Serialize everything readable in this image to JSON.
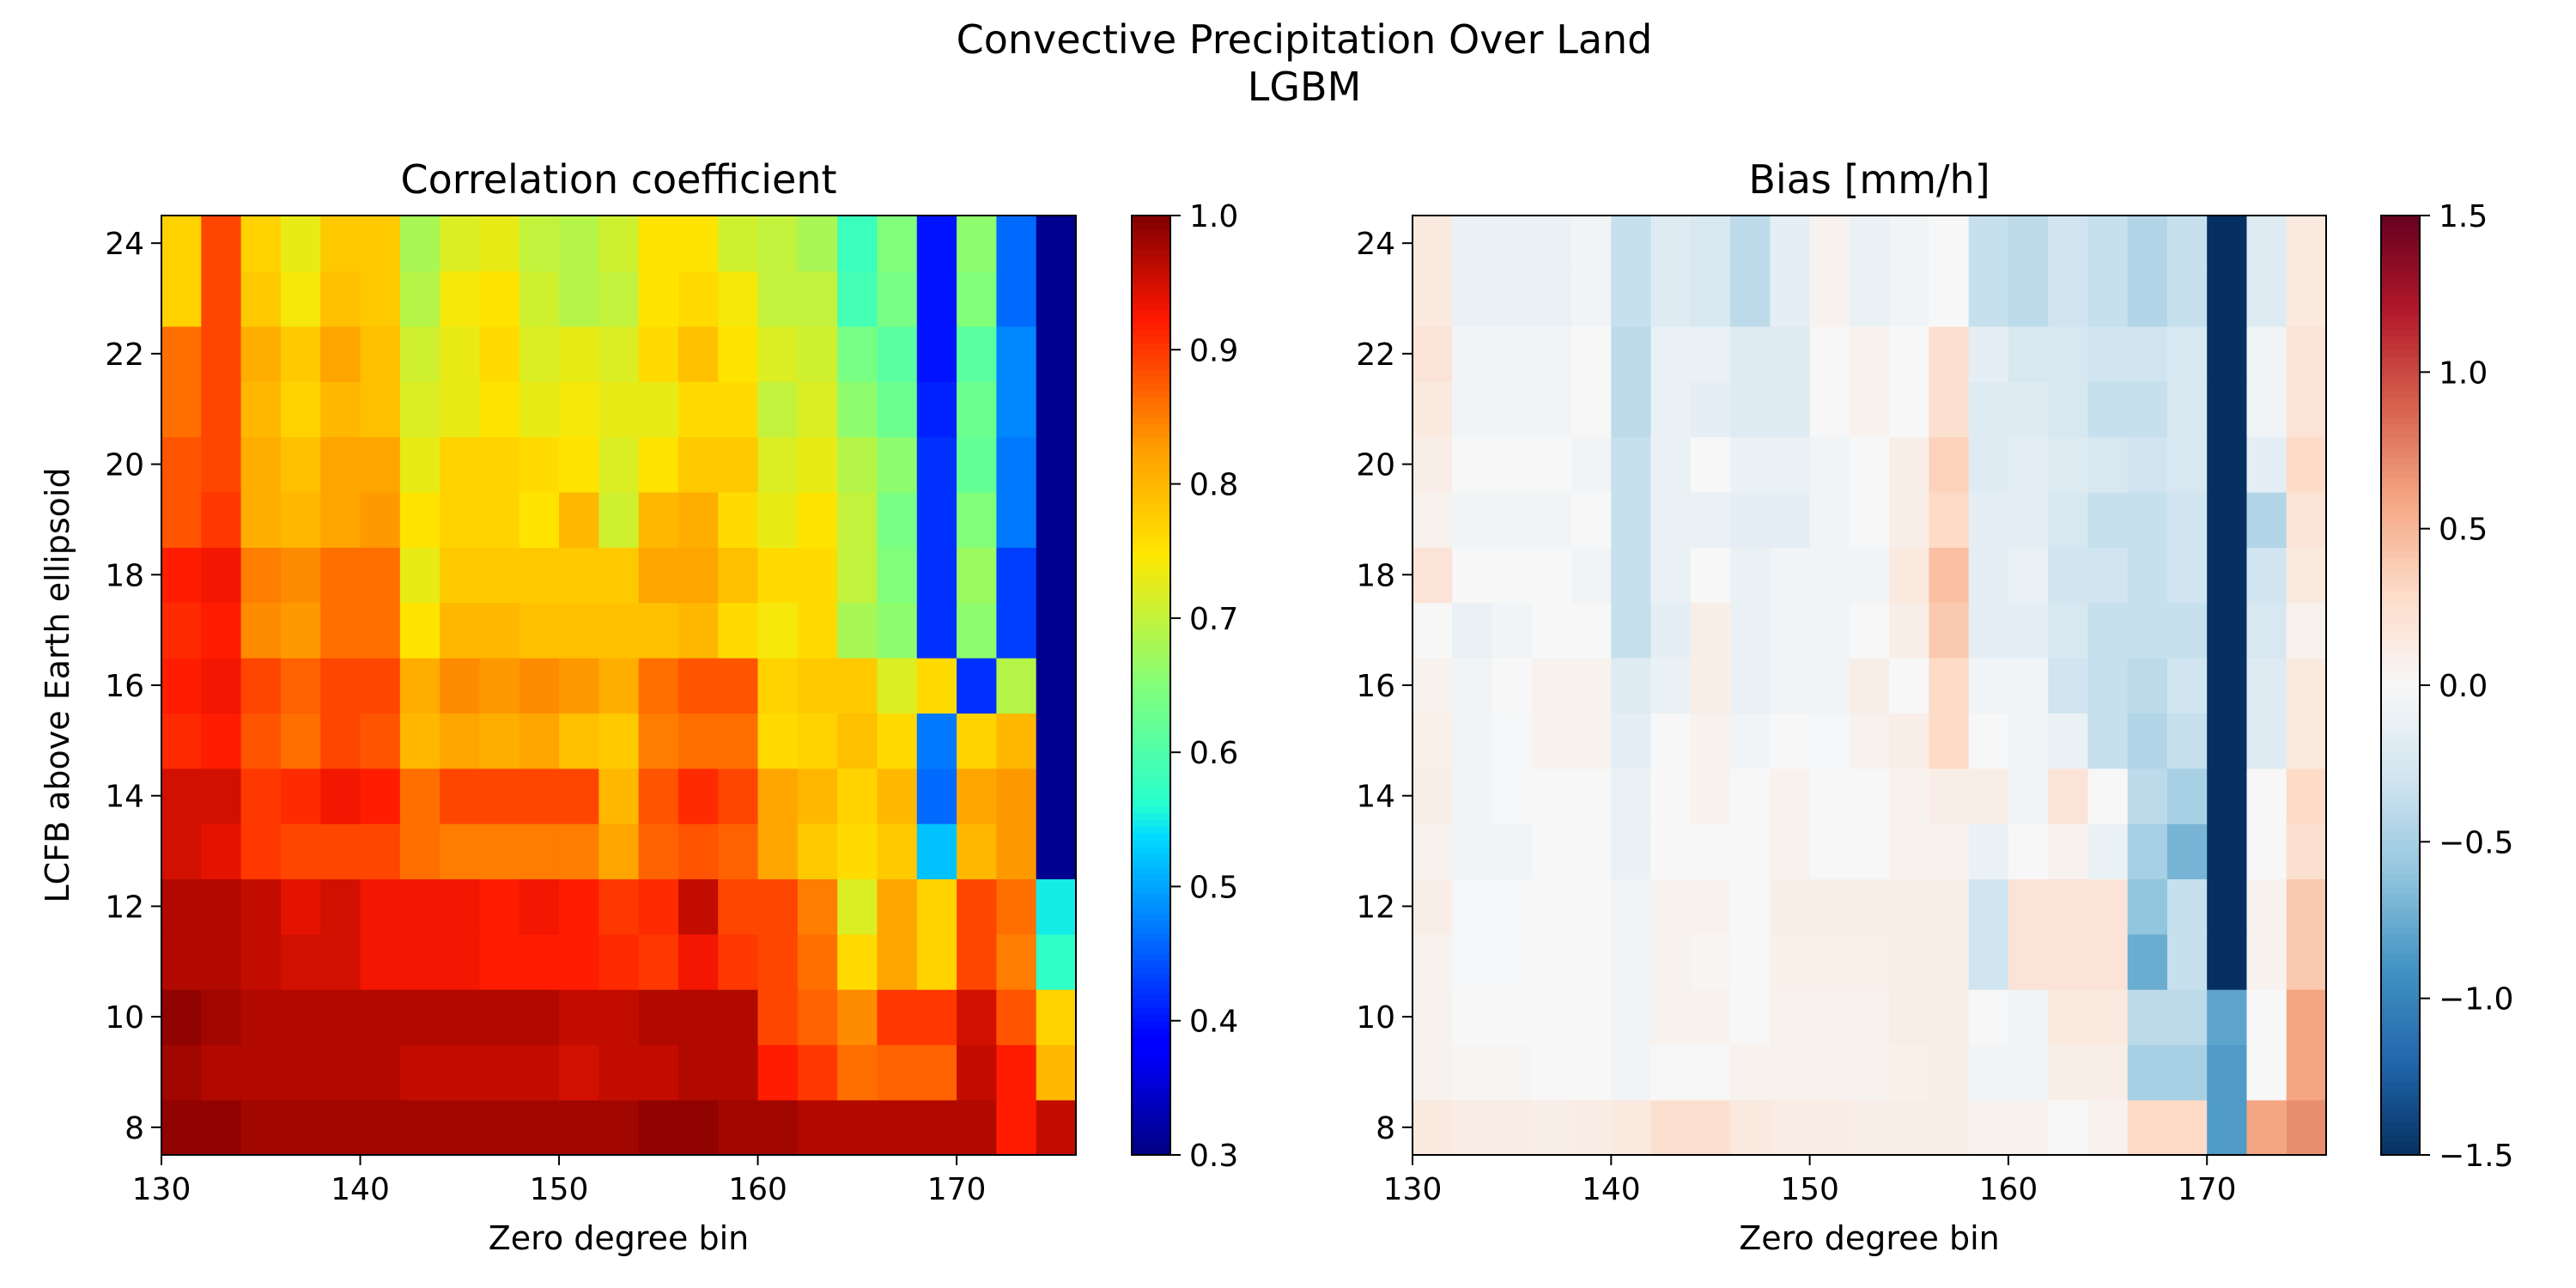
{
  "figure": {
    "title": "Convective Precipitation Over Land",
    "subtitle": "LGBM"
  },
  "chart_data": [
    {
      "type": "heatmap",
      "title": "Correlation coefficient",
      "xlabel": "Zero degree bin",
      "ylabel": "LCFB above Earth ellipsoid",
      "xlim": [
        130,
        176
      ],
      "ylim": [
        7.5,
        24.5
      ],
      "x_ticks": [
        130,
        140,
        150,
        160,
        170
      ],
      "y_ticks": [
        8,
        10,
        12,
        14,
        16,
        18,
        20,
        22,
        24
      ],
      "x_bin_starts": [
        130,
        132,
        134,
        136,
        138,
        140,
        142,
        144,
        146,
        148,
        150,
        152,
        154,
        156,
        158,
        160,
        162,
        164,
        166,
        168,
        170,
        172,
        174
      ],
      "y_bin_edges": [
        7.5,
        8.5,
        9.5,
        10.5,
        11.5,
        12.5,
        13.5,
        14.5,
        15.5,
        16.5,
        17.5,
        18.5,
        19.5,
        20.5,
        21.5,
        22.5,
        23.5,
        24.5
      ],
      "colormap": "jet",
      "colorbar": {
        "min": 0.3,
        "max": 1.0,
        "ticks": [
          "0.3",
          "0.4",
          "0.5",
          "0.6",
          "0.7",
          "0.8",
          "0.9",
          "1.0"
        ]
      },
      "values": [
        [
          0.99,
          0.99,
          0.98,
          0.98,
          0.98,
          0.98,
          0.98,
          0.98,
          0.98,
          0.98,
          0.98,
          0.98,
          0.99,
          0.99,
          0.98,
          0.98,
          0.97,
          0.97,
          0.97,
          0.97,
          0.97,
          0.92,
          0.96
        ],
        [
          0.98,
          0.97,
          0.97,
          0.97,
          0.97,
          0.97,
          0.96,
          0.96,
          0.96,
          0.96,
          0.95,
          0.96,
          0.96,
          0.97,
          0.97,
          0.92,
          0.9,
          0.86,
          0.87,
          0.87,
          0.96,
          0.92,
          0.8
        ],
        [
          0.99,
          0.98,
          0.97,
          0.97,
          0.97,
          0.97,
          0.97,
          0.97,
          0.97,
          0.97,
          0.96,
          0.96,
          0.97,
          0.97,
          0.97,
          0.89,
          0.87,
          0.84,
          0.9,
          0.9,
          0.95,
          0.88,
          0.77
        ],
        [
          0.97,
          0.97,
          0.96,
          0.95,
          0.95,
          0.93,
          0.93,
          0.93,
          0.92,
          0.92,
          0.92,
          0.91,
          0.9,
          0.93,
          0.9,
          0.89,
          0.86,
          0.76,
          0.82,
          0.77,
          0.89,
          0.85,
          0.57
        ],
        [
          0.97,
          0.97,
          0.96,
          0.94,
          0.95,
          0.93,
          0.93,
          0.93,
          0.92,
          0.93,
          0.92,
          0.9,
          0.91,
          0.96,
          0.89,
          0.89,
          0.85,
          0.72,
          0.82,
          0.77,
          0.89,
          0.86,
          0.55
        ],
        [
          0.95,
          0.94,
          0.9,
          0.89,
          0.89,
          0.89,
          0.86,
          0.85,
          0.85,
          0.85,
          0.85,
          0.82,
          0.87,
          0.88,
          0.87,
          0.82,
          0.78,
          0.76,
          0.78,
          0.52,
          0.8,
          0.83,
          0.31
        ],
        [
          0.95,
          0.95,
          0.9,
          0.91,
          0.93,
          0.92,
          0.86,
          0.89,
          0.89,
          0.89,
          0.89,
          0.8,
          0.88,
          0.91,
          0.89,
          0.82,
          0.8,
          0.77,
          0.8,
          0.46,
          0.82,
          0.83,
          0.31
        ],
        [
          0.91,
          0.92,
          0.88,
          0.86,
          0.89,
          0.88,
          0.8,
          0.82,
          0.81,
          0.82,
          0.79,
          0.78,
          0.85,
          0.86,
          0.86,
          0.76,
          0.77,
          0.79,
          0.76,
          0.47,
          0.77,
          0.8,
          0.31
        ],
        [
          0.92,
          0.93,
          0.89,
          0.87,
          0.89,
          0.89,
          0.81,
          0.84,
          0.83,
          0.84,
          0.83,
          0.81,
          0.86,
          0.88,
          0.88,
          0.77,
          0.78,
          0.78,
          0.72,
          0.76,
          0.42,
          0.69,
          0.31
        ],
        [
          0.91,
          0.92,
          0.84,
          0.83,
          0.86,
          0.86,
          0.75,
          0.8,
          0.8,
          0.79,
          0.79,
          0.79,
          0.79,
          0.8,
          0.76,
          0.74,
          0.76,
          0.68,
          0.66,
          0.42,
          0.66,
          0.43,
          0.31
        ],
        [
          0.92,
          0.93,
          0.85,
          0.84,
          0.86,
          0.86,
          0.73,
          0.78,
          0.78,
          0.78,
          0.78,
          0.78,
          0.82,
          0.82,
          0.79,
          0.76,
          0.76,
          0.7,
          0.65,
          0.42,
          0.67,
          0.43,
          0.31
        ],
        [
          0.88,
          0.9,
          0.81,
          0.8,
          0.82,
          0.83,
          0.75,
          0.77,
          0.77,
          0.75,
          0.8,
          0.71,
          0.8,
          0.81,
          0.76,
          0.73,
          0.75,
          0.7,
          0.64,
          0.42,
          0.65,
          0.47,
          0.31
        ],
        [
          0.88,
          0.89,
          0.81,
          0.79,
          0.82,
          0.82,
          0.73,
          0.77,
          0.77,
          0.76,
          0.75,
          0.72,
          0.75,
          0.78,
          0.78,
          0.72,
          0.73,
          0.69,
          0.66,
          0.42,
          0.62,
          0.47,
          0.31
        ],
        [
          0.86,
          0.89,
          0.8,
          0.77,
          0.8,
          0.79,
          0.72,
          0.73,
          0.75,
          0.73,
          0.74,
          0.73,
          0.73,
          0.76,
          0.76,
          0.7,
          0.72,
          0.66,
          0.63,
          0.41,
          0.63,
          0.48,
          0.31
        ],
        [
          0.86,
          0.89,
          0.81,
          0.78,
          0.82,
          0.79,
          0.71,
          0.73,
          0.76,
          0.72,
          0.73,
          0.72,
          0.76,
          0.79,
          0.75,
          0.72,
          0.71,
          0.64,
          0.61,
          0.4,
          0.61,
          0.48,
          0.31
        ],
        [
          0.77,
          0.89,
          0.78,
          0.74,
          0.79,
          0.78,
          0.69,
          0.74,
          0.75,
          0.71,
          0.69,
          0.7,
          0.75,
          0.76,
          0.74,
          0.7,
          0.7,
          0.59,
          0.64,
          0.4,
          0.65,
          0.46,
          0.31
        ],
        [
          0.77,
          0.89,
          0.77,
          0.73,
          0.78,
          0.78,
          0.68,
          0.72,
          0.73,
          0.7,
          0.69,
          0.71,
          0.75,
          0.75,
          0.71,
          0.7,
          0.68,
          0.58,
          0.65,
          0.4,
          0.66,
          0.46,
          0.31
        ]
      ]
    },
    {
      "type": "heatmap",
      "title": "Bias [mm/h]",
      "xlabel": "Zero degree bin",
      "ylabel": "",
      "xlim": [
        130,
        176
      ],
      "ylim": [
        7.5,
        24.5
      ],
      "x_ticks": [
        130,
        140,
        150,
        160,
        170
      ],
      "y_ticks": [
        8,
        10,
        12,
        14,
        16,
        18,
        20,
        22,
        24
      ],
      "x_bin_starts": [
        130,
        132,
        134,
        136,
        138,
        140,
        142,
        144,
        146,
        148,
        150,
        152,
        154,
        156,
        158,
        160,
        162,
        164,
        166,
        168,
        170,
        172,
        174
      ],
      "y_bin_edges": [
        7.5,
        8.5,
        9.5,
        10.5,
        11.5,
        12.5,
        13.5,
        14.5,
        15.5,
        16.5,
        17.5,
        18.5,
        19.5,
        20.5,
        21.5,
        22.5,
        23.5,
        24.5
      ],
      "colormap": "RdBu_r",
      "colorbar": {
        "min": -1.5,
        "max": 1.5,
        "ticks": [
          "−1.5",
          "−1.0",
          "−0.5",
          "0.0",
          "0.5",
          "1.0",
          "1.5"
        ]
      },
      "values": [
        [
          0.15,
          0.12,
          0.12,
          0.1,
          0.12,
          0.15,
          0.25,
          0.25,
          0.15,
          0.12,
          0.12,
          0.1,
          0.1,
          0.1,
          0.05,
          0.05,
          0.0,
          0.05,
          0.3,
          0.3,
          -0.85,
          0.6,
          0.7
        ],
        [
          0.05,
          0.02,
          0.02,
          0.0,
          0.0,
          -0.05,
          0.0,
          0.0,
          0.05,
          0.05,
          0.05,
          0.05,
          0.08,
          0.1,
          -0.05,
          -0.05,
          0.1,
          0.1,
          -0.5,
          -0.5,
          -0.85,
          0.0,
          0.6
        ],
        [
          0.05,
          0.0,
          0.0,
          0.0,
          0.0,
          -0.05,
          0.05,
          0.05,
          0.0,
          0.05,
          0.05,
          0.05,
          0.1,
          0.1,
          0.0,
          -0.05,
          0.15,
          0.15,
          -0.4,
          -0.4,
          -0.8,
          0.0,
          0.6
        ],
        [
          0.05,
          -0.02,
          -0.02,
          0.0,
          0.0,
          -0.05,
          0.05,
          0.02,
          0.0,
          0.08,
          0.08,
          0.08,
          0.1,
          0.1,
          -0.3,
          0.2,
          0.2,
          0.2,
          -0.75,
          -0.35,
          -1.5,
          0.05,
          0.4
        ],
        [
          0.1,
          -0.02,
          -0.02,
          0.0,
          0.0,
          -0.05,
          0.05,
          0.05,
          0.0,
          0.1,
          0.1,
          0.1,
          0.1,
          0.1,
          -0.3,
          0.2,
          0.2,
          0.2,
          -0.6,
          -0.35,
          -1.5,
          0.05,
          0.4
        ],
        [
          0.05,
          -0.05,
          -0.05,
          0.0,
          0.0,
          -0.1,
          0.0,
          0.0,
          0.0,
          0.05,
          0.0,
          0.0,
          0.05,
          0.05,
          -0.1,
          0.0,
          0.05,
          -0.1,
          -0.5,
          -0.7,
          -1.5,
          0.0,
          0.25
        ],
        [
          0.1,
          -0.05,
          -0.02,
          0.0,
          0.0,
          -0.1,
          0.0,
          0.05,
          0.0,
          0.05,
          0.0,
          0.0,
          0.05,
          0.1,
          0.1,
          -0.05,
          0.2,
          0.0,
          -0.4,
          -0.5,
          -1.5,
          0.0,
          0.3
        ],
        [
          0.08,
          -0.05,
          -0.02,
          0.05,
          0.05,
          -0.15,
          0.0,
          0.05,
          -0.05,
          0.0,
          -0.02,
          0.05,
          0.1,
          0.3,
          0.0,
          -0.05,
          -0.1,
          -0.35,
          -0.45,
          -0.35,
          -1.5,
          -0.2,
          0.15
        ],
        [
          0.05,
          -0.05,
          0.0,
          0.05,
          0.05,
          -0.2,
          -0.1,
          0.1,
          -0.1,
          -0.05,
          -0.05,
          0.1,
          0.0,
          0.3,
          -0.05,
          -0.05,
          -0.3,
          -0.35,
          -0.4,
          -0.3,
          -1.5,
          -0.2,
          0.15
        ],
        [
          0.0,
          -0.1,
          -0.05,
          0.0,
          0.0,
          -0.35,
          -0.15,
          0.1,
          -0.1,
          -0.05,
          -0.05,
          0.0,
          0.1,
          0.4,
          -0.15,
          -0.15,
          -0.25,
          -0.35,
          -0.35,
          -0.35,
          -1.5,
          -0.25,
          0.05
        ],
        [
          0.2,
          0.0,
          0.0,
          0.0,
          -0.05,
          -0.35,
          -0.1,
          0.0,
          -0.1,
          -0.05,
          -0.05,
          -0.05,
          0.15,
          0.45,
          -0.15,
          -0.1,
          -0.3,
          -0.3,
          -0.35,
          -0.3,
          -1.5,
          -0.3,
          0.15
        ],
        [
          0.05,
          -0.05,
          -0.05,
          -0.05,
          0.0,
          -0.35,
          -0.1,
          -0.1,
          -0.15,
          -0.15,
          -0.05,
          0.0,
          0.1,
          0.3,
          -0.15,
          -0.15,
          -0.25,
          -0.35,
          -0.35,
          -0.3,
          -1.5,
          -0.45,
          0.2
        ],
        [
          0.1,
          0.0,
          0.0,
          0.0,
          -0.05,
          -0.35,
          -0.1,
          0.0,
          -0.1,
          -0.1,
          -0.05,
          0.0,
          0.1,
          0.35,
          -0.2,
          -0.15,
          -0.2,
          -0.25,
          -0.3,
          -0.25,
          -1.5,
          -0.15,
          0.3
        ],
        [
          0.15,
          -0.05,
          -0.05,
          -0.05,
          0.0,
          -0.4,
          -0.1,
          -0.15,
          -0.2,
          -0.2,
          0.0,
          0.05,
          0.0,
          0.25,
          -0.2,
          -0.2,
          -0.25,
          -0.35,
          -0.35,
          -0.25,
          -1.5,
          -0.05,
          0.2
        ],
        [
          0.2,
          -0.05,
          -0.05,
          -0.05,
          0.0,
          -0.4,
          -0.1,
          -0.1,
          -0.2,
          -0.2,
          0.0,
          0.05,
          0.0,
          0.25,
          -0.15,
          -0.25,
          -0.25,
          -0.3,
          -0.3,
          -0.25,
          -1.5,
          -0.05,
          0.2
        ],
        [
          0.15,
          -0.1,
          -0.1,
          -0.1,
          -0.05,
          -0.35,
          -0.2,
          -0.25,
          -0.4,
          -0.15,
          0.05,
          -0.1,
          -0.05,
          0.0,
          -0.35,
          -0.4,
          -0.3,
          -0.35,
          -0.45,
          -0.35,
          -1.5,
          -0.2,
          0.15
        ],
        [
          0.15,
          -0.1,
          -0.1,
          -0.1,
          -0.05,
          -0.35,
          -0.2,
          -0.25,
          -0.4,
          -0.15,
          0.05,
          -0.1,
          -0.05,
          0.0,
          -0.35,
          -0.4,
          -0.3,
          -0.35,
          -0.45,
          -0.35,
          -1.5,
          -0.2,
          0.15
        ]
      ]
    }
  ]
}
